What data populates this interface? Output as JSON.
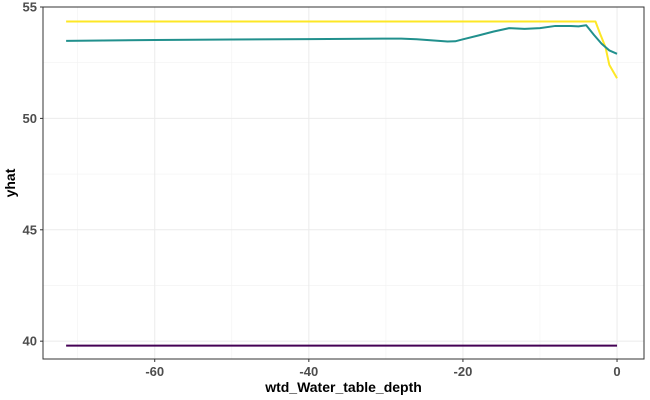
{
  "chart_data": {
    "type": "line",
    "title": "",
    "xlabel": "wtd_Water_table_depth",
    "ylabel": "yhat",
    "xlim": [
      -74.5,
      3.5
    ],
    "ylim": [
      39.2,
      55.0
    ],
    "x_ticks": [
      -60,
      -40,
      -20,
      0
    ],
    "y_ticks": [
      40,
      45,
      50,
      55
    ],
    "x_tick_labels": [
      "-60",
      "-40",
      "-20",
      "0"
    ],
    "y_tick_labels": [
      "40",
      "45",
      "50",
      "55"
    ],
    "grid": true,
    "legend": "none",
    "series": [
      {
        "color": "#fde725",
        "x": [
          -71.5,
          -60,
          -40,
          -20,
          -10,
          -5,
          -2.8,
          -2.2,
          -1.5,
          -1.0,
          0
        ],
        "y": [
          54.35,
          54.35,
          54.35,
          54.35,
          54.35,
          54.35,
          54.35,
          53.8,
          53.2,
          52.4,
          51.8
        ]
      },
      {
        "color": "#21908d",
        "x": [
          -71.5,
          -60,
          -50,
          -40,
          -35,
          -30,
          -28,
          -26,
          -24,
          -22,
          -21,
          -20,
          -18,
          -16,
          -14,
          -12,
          -10,
          -8,
          -6,
          -5,
          -4,
          -3,
          -2,
          -1,
          0
        ],
        "y": [
          53.48,
          53.52,
          53.54,
          53.56,
          53.57,
          53.58,
          53.58,
          53.55,
          53.5,
          53.45,
          53.46,
          53.55,
          53.72,
          53.9,
          54.05,
          54.02,
          54.05,
          54.15,
          54.15,
          54.13,
          54.18,
          53.75,
          53.35,
          53.05,
          52.9
        ]
      },
      {
        "color": "#440154",
        "x": [
          -71.5,
          -60,
          -40,
          -20,
          0
        ],
        "y": [
          39.8,
          39.8,
          39.8,
          39.8,
          39.8
        ]
      }
    ]
  }
}
